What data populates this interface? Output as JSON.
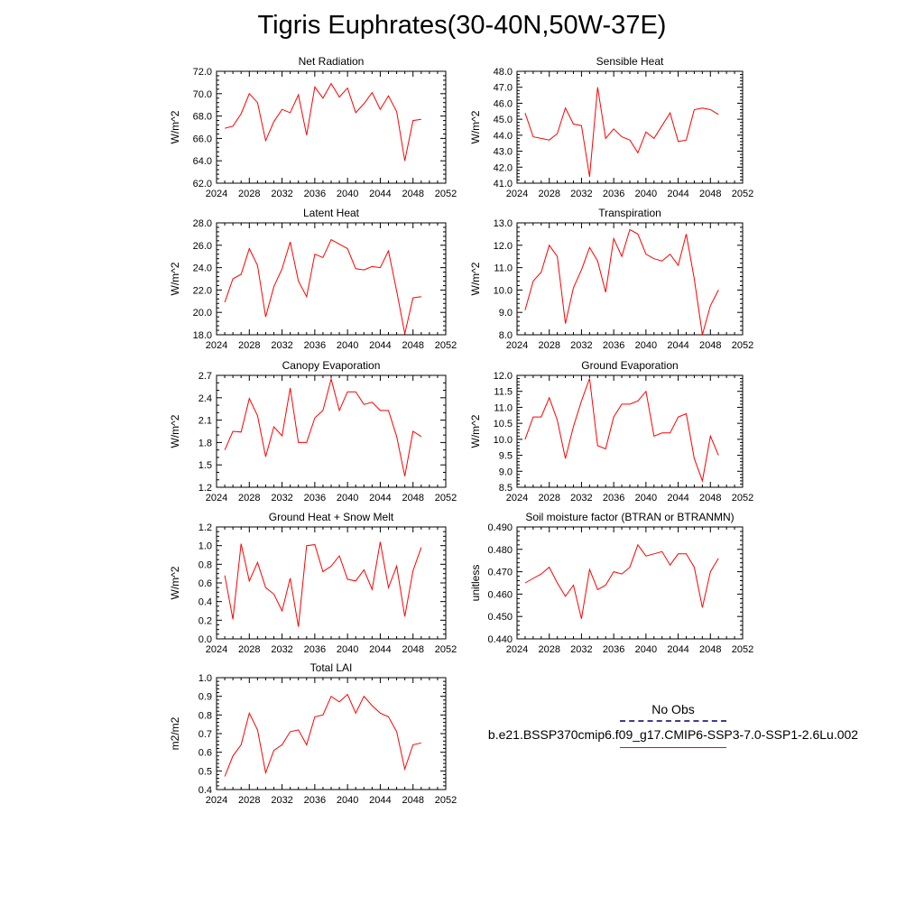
{
  "title": "Tigris Euphrates(30-40N,50W-37E)",
  "legend": {
    "obs_label": "No Obs",
    "case_label": "b.e21.BSSP370cmip6.f09_g17.CMIP6-SSP3-7.0-SSP1-2.6Lu.002",
    "obs_color": "#3d3d8f",
    "case_color": "#ff0000"
  },
  "chart_data": [
    {
      "type": "line",
      "title": "Net Radiation",
      "ylabel": "W/m^2",
      "xlim": [
        2024,
        2052
      ],
      "xticks": [
        2024,
        2028,
        2032,
        2036,
        2040,
        2044,
        2048,
        2052
      ],
      "ylim": [
        62.0,
        72.0
      ],
      "yticks": [
        62.0,
        64.0,
        66.0,
        68.0,
        70.0,
        72.0
      ],
      "ydec": 1,
      "yminor": 5,
      "x": [
        2025,
        2026,
        2027,
        2028,
        2029,
        2030,
        2031,
        2032,
        2033,
        2034,
        2035,
        2036,
        2037,
        2038,
        2039,
        2040,
        2041,
        2042,
        2043,
        2044,
        2045,
        2046,
        2047,
        2048,
        2049
      ],
      "values": [
        66.9,
        67.1,
        68.2,
        70.0,
        69.2,
        65.8,
        67.5,
        68.6,
        68.3,
        69.9,
        66.3,
        70.6,
        69.6,
        70.9,
        69.7,
        70.5,
        68.3,
        69.1,
        70.1,
        68.6,
        69.8,
        68.4,
        64.0,
        67.6,
        67.7
      ],
      "color": "#ff0000"
    },
    {
      "type": "line",
      "title": "Sensible Heat",
      "ylabel": "W/m^2",
      "xlim": [
        2024,
        2052
      ],
      "xticks": [
        2024,
        2028,
        2032,
        2036,
        2040,
        2044,
        2048,
        2052
      ],
      "ylim": [
        41.0,
        48.0
      ],
      "yticks": [
        41.0,
        42.0,
        43.0,
        44.0,
        45.0,
        46.0,
        47.0,
        48.0
      ],
      "ydec": 1,
      "yminor": 5,
      "x": [
        2025,
        2026,
        2027,
        2028,
        2029,
        2030,
        2031,
        2032,
        2033,
        2034,
        2035,
        2036,
        2037,
        2038,
        2039,
        2040,
        2041,
        2042,
        2043,
        2044,
        2045,
        2046,
        2047,
        2048,
        2049
      ],
      "values": [
        45.4,
        43.9,
        43.8,
        43.7,
        44.1,
        45.7,
        44.7,
        44.6,
        41.4,
        47.0,
        43.8,
        44.4,
        43.9,
        43.7,
        42.9,
        44.2,
        43.8,
        44.6,
        45.4,
        43.6,
        43.7,
        45.6,
        45.7,
        45.6,
        45.3
      ],
      "color": "#ff0000"
    },
    {
      "type": "line",
      "title": "Latent Heat",
      "ylabel": "W/m^2",
      "xlim": [
        2024,
        2052
      ],
      "xticks": [
        2024,
        2028,
        2032,
        2036,
        2040,
        2044,
        2048,
        2052
      ],
      "ylim": [
        18.0,
        28.0
      ],
      "yticks": [
        18.0,
        20.0,
        22.0,
        24.0,
        26.0,
        28.0
      ],
      "ydec": 1,
      "yminor": 5,
      "x": [
        2025,
        2026,
        2027,
        2028,
        2029,
        2030,
        2031,
        2032,
        2033,
        2034,
        2035,
        2036,
        2037,
        2038,
        2039,
        2040,
        2041,
        2042,
        2043,
        2044,
        2045,
        2046,
        2047,
        2048,
        2049
      ],
      "values": [
        20.9,
        23.0,
        23.4,
        25.7,
        24.2,
        19.6,
        22.3,
        23.9,
        26.3,
        22.8,
        21.4,
        25.2,
        24.9,
        26.5,
        26.1,
        25.7,
        23.9,
        23.8,
        24.1,
        24.0,
        25.5,
        21.9,
        18.1,
        21.3,
        21.4
      ],
      "color": "#ff0000"
    },
    {
      "type": "line",
      "title": "Transpiration",
      "ylabel": "W/m^2",
      "xlim": [
        2024,
        2052
      ],
      "xticks": [
        2024,
        2028,
        2032,
        2036,
        2040,
        2044,
        2048,
        2052
      ],
      "ylim": [
        8.0,
        13.0
      ],
      "yticks": [
        8.0,
        9.0,
        10.0,
        11.0,
        12.0,
        13.0
      ],
      "ydec": 1,
      "yminor": 5,
      "x": [
        2025,
        2026,
        2027,
        2028,
        2029,
        2030,
        2031,
        2032,
        2033,
        2034,
        2035,
        2036,
        2037,
        2038,
        2039,
        2040,
        2041,
        2042,
        2043,
        2044,
        2045,
        2046,
        2047,
        2048,
        2049
      ],
      "values": [
        9.1,
        10.4,
        10.8,
        12.0,
        11.5,
        8.5,
        10.1,
        10.9,
        11.9,
        11.3,
        9.9,
        12.3,
        11.5,
        12.7,
        12.5,
        11.6,
        11.4,
        11.3,
        11.6,
        11.1,
        12.5,
        10.5,
        8.0,
        9.3,
        10.0
      ],
      "color": "#ff0000"
    },
    {
      "type": "line",
      "title": "Canopy Evaporation",
      "ylabel": "W/m^2",
      "xlim": [
        2024,
        2052
      ],
      "xticks": [
        2024,
        2028,
        2032,
        2036,
        2040,
        2044,
        2048,
        2052
      ],
      "ylim": [
        1.2,
        2.7
      ],
      "yticks": [
        1.2,
        1.5,
        1.8,
        2.1,
        2.4,
        2.7
      ],
      "ydec": 1,
      "yminor": 3,
      "x": [
        2025,
        2026,
        2027,
        2028,
        2029,
        2030,
        2031,
        2032,
        2033,
        2034,
        2035,
        2036,
        2037,
        2038,
        2039,
        2040,
        2041,
        2042,
        2043,
        2044,
        2045,
        2046,
        2047,
        2048,
        2049
      ],
      "values": [
        1.7,
        1.95,
        1.94,
        2.39,
        2.16,
        1.61,
        2.01,
        1.89,
        2.53,
        1.8,
        1.8,
        2.13,
        2.23,
        2.65,
        2.23,
        2.48,
        2.48,
        2.31,
        2.34,
        2.23,
        2.23,
        1.88,
        1.35,
        1.95,
        1.88
      ],
      "color": "#ff0000"
    },
    {
      "type": "line",
      "title": "Ground Evaporation",
      "ylabel": "W/m^2",
      "xlim": [
        2024,
        2052
      ],
      "xticks": [
        2024,
        2028,
        2032,
        2036,
        2040,
        2044,
        2048,
        2052
      ],
      "ylim": [
        8.5,
        12.0
      ],
      "yticks": [
        8.5,
        9.0,
        9.5,
        10.0,
        10.5,
        11.0,
        11.5,
        12.0
      ],
      "ydec": 1,
      "yminor": 5,
      "x": [
        2025,
        2026,
        2027,
        2028,
        2029,
        2030,
        2031,
        2032,
        2033,
        2034,
        2035,
        2036,
        2037,
        2038,
        2039,
        2040,
        2041,
        2042,
        2043,
        2044,
        2045,
        2046,
        2047,
        2048,
        2049
      ],
      "values": [
        10.0,
        10.7,
        10.7,
        11.3,
        10.6,
        9.4,
        10.4,
        11.2,
        11.9,
        9.8,
        9.7,
        10.7,
        11.1,
        11.1,
        11.2,
        11.5,
        10.1,
        10.2,
        10.2,
        10.7,
        10.8,
        9.4,
        8.7,
        10.1,
        9.5
      ],
      "color": "#ff0000"
    },
    {
      "type": "line",
      "title": "Ground Heat + Snow Melt",
      "ylabel": "W/m^2",
      "xlim": [
        2024,
        2052
      ],
      "xticks": [
        2024,
        2028,
        2032,
        2036,
        2040,
        2044,
        2048,
        2052
      ],
      "ylim": [
        0.0,
        1.2
      ],
      "yticks": [
        0.0,
        0.2,
        0.4,
        0.6,
        0.8,
        1.0,
        1.2
      ],
      "ydec": 1,
      "yminor": 4,
      "x": [
        2025,
        2026,
        2027,
        2028,
        2029,
        2030,
        2031,
        2032,
        2033,
        2034,
        2035,
        2036,
        2037,
        2038,
        2039,
        2040,
        2041,
        2042,
        2043,
        2044,
        2045,
        2046,
        2047,
        2048,
        2049
      ],
      "values": [
        0.68,
        0.21,
        1.02,
        0.62,
        0.82,
        0.55,
        0.48,
        0.3,
        0.65,
        0.13,
        1.0,
        1.01,
        0.72,
        0.78,
        0.89,
        0.64,
        0.62,
        0.74,
        0.53,
        1.04,
        0.55,
        0.78,
        0.24,
        0.73,
        0.98
      ],
      "color": "#ff0000"
    },
    {
      "type": "line",
      "title": "Soil moisture factor (BTRAN or BTRANMN)",
      "ylabel": "unitless",
      "xlim": [
        2024,
        2052
      ],
      "xticks": [
        2024,
        2028,
        2032,
        2036,
        2040,
        2044,
        2048,
        2052
      ],
      "ylim": [
        0.44,
        0.49
      ],
      "yticks": [
        0.44,
        0.45,
        0.46,
        0.47,
        0.48,
        0.49
      ],
      "ydec": 3,
      "yminor": 5,
      "x": [
        2025,
        2026,
        2027,
        2028,
        2029,
        2030,
        2031,
        2032,
        2033,
        2034,
        2035,
        2036,
        2037,
        2038,
        2039,
        2040,
        2041,
        2042,
        2043,
        2044,
        2045,
        2046,
        2047,
        2048,
        2049
      ],
      "values": [
        0.465,
        0.467,
        0.469,
        0.472,
        0.465,
        0.459,
        0.464,
        0.449,
        0.471,
        0.462,
        0.464,
        0.47,
        0.469,
        0.472,
        0.482,
        0.477,
        0.478,
        0.479,
        0.473,
        0.478,
        0.478,
        0.472,
        0.454,
        0.47,
        0.476
      ],
      "color": "#ff0000"
    },
    {
      "type": "line",
      "title": "Total LAI",
      "ylabel": "m2/m2",
      "xlim": [
        2024,
        2052
      ],
      "xticks": [
        2024,
        2028,
        2032,
        2036,
        2040,
        2044,
        2048,
        2052
      ],
      "ylim": [
        0.4,
        1.0
      ],
      "yticks": [
        0.4,
        0.5,
        0.6,
        0.7,
        0.8,
        0.9,
        1.0
      ],
      "ydec": 1,
      "yminor": 5,
      "x": [
        2025,
        2026,
        2027,
        2028,
        2029,
        2030,
        2031,
        2032,
        2033,
        2034,
        2035,
        2036,
        2037,
        2038,
        2039,
        2040,
        2041,
        2042,
        2043,
        2044,
        2045,
        2046,
        2047,
        2048,
        2049
      ],
      "values": [
        0.47,
        0.58,
        0.64,
        0.81,
        0.72,
        0.49,
        0.61,
        0.64,
        0.71,
        0.72,
        0.64,
        0.79,
        0.8,
        0.9,
        0.87,
        0.91,
        0.81,
        0.9,
        0.85,
        0.81,
        0.79,
        0.71,
        0.51,
        0.64,
        0.65
      ],
      "color": "#ff0000"
    }
  ]
}
